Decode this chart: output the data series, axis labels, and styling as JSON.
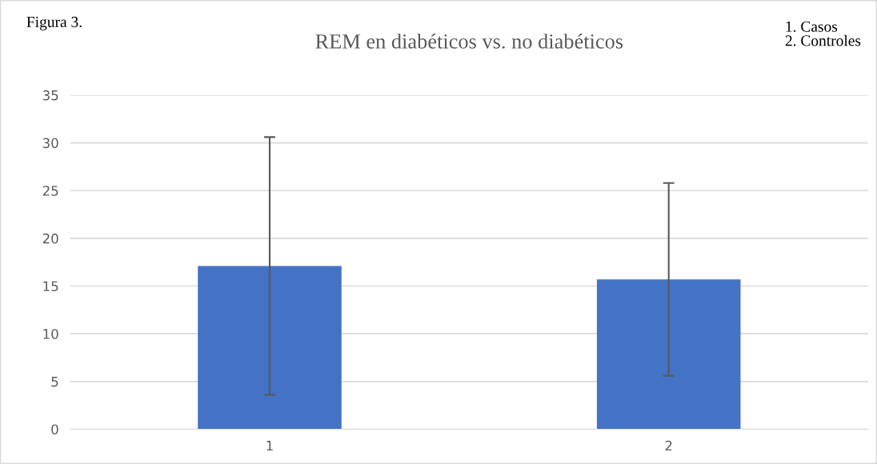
{
  "chart_data": {
    "type": "bar",
    "title": "REM en diabéticos vs. no diabéticos",
    "categories": [
      "1",
      "2"
    ],
    "values": [
      17.1,
      15.7
    ],
    "errors": [
      13.5,
      10.1
    ],
    "color": "#4472c4",
    "ylim": [
      0,
      35
    ],
    "yticks": [
      0,
      5,
      10,
      15,
      20,
      25,
      30,
      35
    ],
    "grid": "y",
    "annotations": [
      "Figura 3.",
      "1. Casos\n2. Controles"
    ]
  }
}
